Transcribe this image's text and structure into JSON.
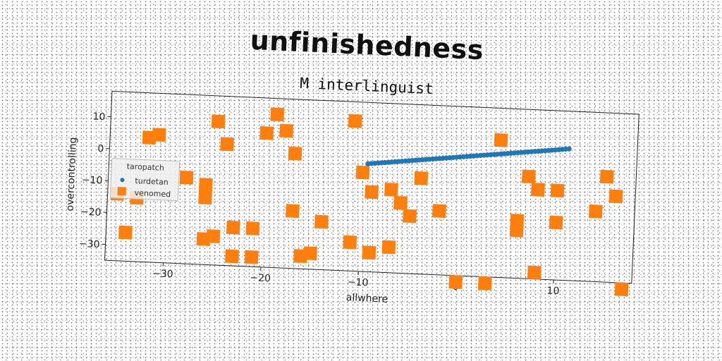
{
  "chart_data": {
    "type": "scatter",
    "title": "unfinishedness",
    "subtitle": "M interlinguist",
    "xlabel": "allwhere",
    "ylabel": "overcontrolling",
    "xlim": [
      -36,
      18
    ],
    "ylim": [
      -35,
      18
    ],
    "xticks": [
      -30,
      -20,
      -10,
      0,
      10
    ],
    "yticks": [
      10,
      0,
      -10,
      -20,
      -30
    ],
    "grid": false,
    "legend": {
      "title": "taropatch",
      "placement": "center-left"
    },
    "colors": {
      "turdetan": "#1f77b4",
      "venomed": "#ff7f0e"
    },
    "series": [
      {
        "name": "turdetan",
        "marker": "circle",
        "x_range": [
          -9.5,
          11
        ],
        "y_range": [
          -1.2,
          6.2
        ],
        "points": 60
      },
      {
        "name": "venomed",
        "marker": "square",
        "points": [
          [
            -35,
            -14
          ],
          [
            -34,
            -26
          ],
          [
            -33,
            -15
          ],
          [
            -32,
            4
          ],
          [
            -31,
            5
          ],
          [
            -28,
            -8
          ],
          [
            -26,
            -27
          ],
          [
            -26,
            -10
          ],
          [
            -26,
            -14
          ],
          [
            -25,
            10
          ],
          [
            -25,
            -26
          ],
          [
            -24,
            3
          ],
          [
            -23,
            -23
          ],
          [
            -23,
            -32
          ],
          [
            -21,
            -23
          ],
          [
            -21,
            -32
          ],
          [
            -20,
            7
          ],
          [
            -19,
            13
          ],
          [
            -18,
            8
          ],
          [
            -17,
            -17
          ],
          [
            -17,
            1
          ],
          [
            -16,
            -31
          ],
          [
            -15,
            -30
          ],
          [
            -14,
            -20
          ],
          [
            -11,
            -26
          ],
          [
            -11,
            12
          ],
          [
            -10,
            -4
          ],
          [
            -9,
            -10
          ],
          [
            -9,
            -29
          ],
          [
            -7,
            -9
          ],
          [
            -7,
            -27
          ],
          [
            -6,
            -13
          ],
          [
            -5,
            -17
          ],
          [
            -4,
            -5
          ],
          [
            -2,
            -15
          ],
          [
            0,
            -37
          ],
          [
            3,
            -37
          ],
          [
            4,
            8
          ],
          [
            6,
            -17
          ],
          [
            6,
            -20
          ],
          [
            7,
            -3
          ],
          [
            8,
            -7
          ],
          [
            8,
            -33
          ],
          [
            10,
            -7
          ],
          [
            10,
            -17
          ],
          [
            14,
            -13
          ],
          [
            15,
            -2
          ],
          [
            16,
            -8
          ],
          [
            17,
            -37
          ]
        ]
      }
    ]
  }
}
